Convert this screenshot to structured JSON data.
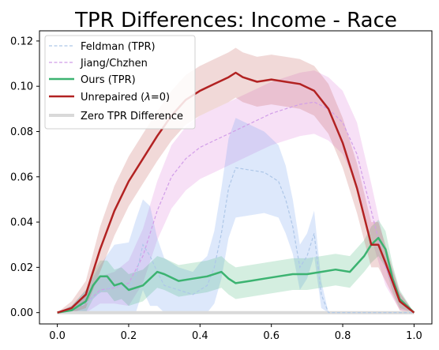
{
  "chart_data": {
    "type": "line",
    "title": "TPR Differences: Income - Race",
    "xlabel": "",
    "ylabel": "",
    "xlim": [
      -0.05,
      1.05
    ],
    "ylim": [
      -0.005,
      0.1245
    ],
    "xticks": [
      0.0,
      0.2,
      0.4,
      0.6,
      0.8,
      1.0
    ],
    "xtick_labels": [
      "0.0",
      "0.2",
      "0.4",
      "0.6",
      "0.8",
      "1.0"
    ],
    "yticks": [
      0.0,
      0.02,
      0.04,
      0.06,
      0.08,
      0.1,
      0.12
    ],
    "ytick_labels": [
      "0.00",
      "0.02",
      "0.04",
      "0.06",
      "0.08",
      "0.10",
      "0.12"
    ],
    "legend_position": "upper-left",
    "grid": false,
    "series": [
      {
        "name": "Feldman (TPR)",
        "color": "#aec7e8",
        "style": "dashed",
        "band_color": "#6495ed",
        "x": [
          0.0,
          0.04,
          0.08,
          0.12,
          0.16,
          0.2,
          0.22,
          0.24,
          0.26,
          0.28,
          0.3,
          0.32,
          0.34,
          0.36,
          0.38,
          0.4,
          0.42,
          0.44,
          0.46,
          0.48,
          0.5,
          0.54,
          0.58,
          0.6,
          0.62,
          0.64,
          0.66,
          0.68,
          0.7,
          0.72,
          0.74,
          0.76,
          0.8,
          0.84,
          0.88,
          0.92,
          0.96,
          1.0
        ],
        "y": [
          0.0,
          0.001,
          0.004,
          0.009,
          0.012,
          0.011,
          0.016,
          0.03,
          0.025,
          0.018,
          0.012,
          0.011,
          0.01,
          0.009,
          0.008,
          0.01,
          0.012,
          0.02,
          0.035,
          0.055,
          0.064,
          0.063,
          0.062,
          0.06,
          0.058,
          0.05,
          0.038,
          0.02,
          0.025,
          0.035,
          0.008,
          0.0,
          0.0,
          0.0,
          0.0,
          0.0,
          0.0,
          0.0
        ],
        "band": [
          0.0,
          0.002,
          0.006,
          0.012,
          0.018,
          0.02,
          0.025,
          0.02,
          0.022,
          0.015,
          0.012,
          0.011,
          0.01,
          0.01,
          0.01,
          0.012,
          0.013,
          0.016,
          0.02,
          0.022,
          0.022,
          0.02,
          0.018,
          0.017,
          0.016,
          0.015,
          0.012,
          0.01,
          0.01,
          0.01,
          0.006,
          0.0,
          0.0,
          0.0,
          0.0,
          0.0,
          0.0,
          0.0
        ]
      },
      {
        "name": "Jiang/Chzhen",
        "color": "#d19de8",
        "style": "dashed",
        "band_color": "#da70d6",
        "x": [
          0.0,
          0.04,
          0.08,
          0.12,
          0.16,
          0.2,
          0.24,
          0.28,
          0.32,
          0.36,
          0.4,
          0.44,
          0.48,
          0.52,
          0.56,
          0.6,
          0.64,
          0.68,
          0.72,
          0.76,
          0.8,
          0.84,
          0.88,
          0.92,
          0.96,
          1.0
        ],
        "y": [
          0.0,
          0.001,
          0.004,
          0.01,
          0.011,
          0.013,
          0.025,
          0.045,
          0.06,
          0.068,
          0.073,
          0.076,
          0.079,
          0.082,
          0.085,
          0.088,
          0.09,
          0.092,
          0.093,
          0.09,
          0.084,
          0.07,
          0.045,
          0.02,
          0.005,
          0.0
        ],
        "band": [
          0.0,
          0.002,
          0.004,
          0.006,
          0.007,
          0.01,
          0.012,
          0.013,
          0.014,
          0.014,
          0.014,
          0.014,
          0.014,
          0.014,
          0.014,
          0.014,
          0.014,
          0.014,
          0.014,
          0.014,
          0.014,
          0.014,
          0.012,
          0.008,
          0.004,
          0.0
        ]
      },
      {
        "name": "Ours (TPR)",
        "color": "#3cb371",
        "style": "solid",
        "band_color": "#3cb371",
        "x": [
          0.0,
          0.04,
          0.08,
          0.1,
          0.12,
          0.14,
          0.16,
          0.18,
          0.2,
          0.24,
          0.28,
          0.3,
          0.34,
          0.38,
          0.42,
          0.46,
          0.48,
          0.5,
          0.54,
          0.58,
          0.62,
          0.66,
          0.7,
          0.74,
          0.78,
          0.82,
          0.86,
          0.88,
          0.9,
          0.92,
          0.94,
          0.96,
          1.0
        ],
        "y": [
          0.0,
          0.001,
          0.005,
          0.012,
          0.016,
          0.016,
          0.012,
          0.013,
          0.01,
          0.012,
          0.018,
          0.017,
          0.014,
          0.015,
          0.016,
          0.018,
          0.015,
          0.013,
          0.014,
          0.015,
          0.016,
          0.017,
          0.017,
          0.018,
          0.019,
          0.018,
          0.025,
          0.03,
          0.033,
          0.028,
          0.015,
          0.006,
          0.0
        ],
        "band": [
          0.0,
          0.002,
          0.005,
          0.006,
          0.007,
          0.007,
          0.007,
          0.007,
          0.007,
          0.007,
          0.007,
          0.007,
          0.007,
          0.007,
          0.007,
          0.007,
          0.007,
          0.007,
          0.007,
          0.007,
          0.007,
          0.007,
          0.007,
          0.007,
          0.007,
          0.007,
          0.007,
          0.008,
          0.008,
          0.008,
          0.006,
          0.004,
          0.0
        ]
      },
      {
        "name": "Unrepaired (λ=0)",
        "color": "#b22222",
        "style": "solid",
        "band_color": "#c0504d",
        "x": [
          0.0,
          0.04,
          0.08,
          0.12,
          0.16,
          0.2,
          0.24,
          0.28,
          0.32,
          0.36,
          0.4,
          0.44,
          0.48,
          0.5,
          0.52,
          0.56,
          0.6,
          0.64,
          0.68,
          0.72,
          0.76,
          0.8,
          0.84,
          0.88,
          0.9,
          0.92,
          0.96,
          1.0
        ],
        "y": [
          0.0,
          0.002,
          0.008,
          0.028,
          0.045,
          0.058,
          0.068,
          0.078,
          0.087,
          0.094,
          0.098,
          0.101,
          0.104,
          0.106,
          0.104,
          0.102,
          0.103,
          0.102,
          0.101,
          0.098,
          0.09,
          0.075,
          0.055,
          0.03,
          0.03,
          0.022,
          0.005,
          0.0
        ],
        "band": [
          0.0,
          0.003,
          0.006,
          0.01,
          0.011,
          0.011,
          0.011,
          0.011,
          0.011,
          0.011,
          0.011,
          0.011,
          0.011,
          0.011,
          0.011,
          0.011,
          0.011,
          0.011,
          0.011,
          0.011,
          0.011,
          0.011,
          0.011,
          0.01,
          0.01,
          0.008,
          0.004,
          0.0
        ]
      },
      {
        "name": "Zero TPR Difference",
        "color": "#d9d9d9",
        "style": "solid",
        "x": [
          0.0,
          1.0
        ],
        "y": [
          0.0,
          0.0
        ]
      }
    ]
  },
  "legend": {
    "feldman": "Feldman (TPR)",
    "jiang": "Jiang/Chzhen",
    "ours": "Ours (TPR)",
    "unrepaired_prefix": "Unrepaired (",
    "unrepaired_lambda": "λ",
    "unrepaired_suffix": "=0)",
    "zero": "Zero TPR Difference"
  }
}
